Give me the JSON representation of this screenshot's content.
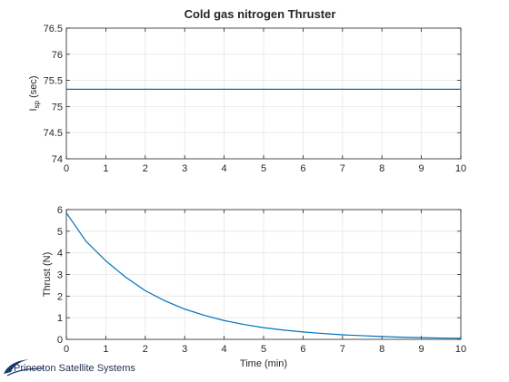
{
  "figure_title": "Cold gas nitrogen Thruster",
  "logo": {
    "text": "Princeton Satellite Systems",
    "color": "#1b3a6b"
  },
  "colors": {
    "line": "#0072bd",
    "grid": "#e6e6e6",
    "axis": "#262626"
  },
  "chart_data": [
    {
      "type": "line",
      "title": "Cold gas nitrogen Thruster",
      "xlabel": "",
      "ylabel_main": "I",
      "ylabel_sub": "sp",
      "ylabel_unit": "(sec)",
      "xlim": [
        0,
        10
      ],
      "ylim": [
        74,
        76.5
      ],
      "xticks": [
        "0",
        "1",
        "2",
        "3",
        "4",
        "5",
        "6",
        "7",
        "8",
        "9",
        "10"
      ],
      "yticks": [
        "74",
        "74.5",
        "75",
        "75.5",
        "76",
        "76.5"
      ],
      "grid": true,
      "series": [
        {
          "x": [
            0,
            10
          ],
          "y": [
            75.33,
            75.33
          ]
        }
      ]
    },
    {
      "type": "line",
      "title": "",
      "xlabel": "Time (min)",
      "ylabel": "Thrust (N)",
      "xlim": [
        0,
        10
      ],
      "ylim": [
        0,
        6
      ],
      "xticks": [
        "0",
        "1",
        "2",
        "3",
        "4",
        "5",
        "6",
        "7",
        "8",
        "9",
        "10"
      ],
      "yticks": [
        "0",
        "1",
        "2",
        "3",
        "4",
        "5",
        "6"
      ],
      "grid": true,
      "series": [
        {
          "x": [
            0,
            0.5,
            1,
            1.5,
            2,
            2.5,
            3,
            3.5,
            4,
            4.5,
            5,
            5.5,
            6,
            6.5,
            7,
            7.5,
            8,
            8.5,
            9,
            9.5,
            10
          ],
          "y": [
            5.85,
            4.53,
            3.63,
            2.88,
            2.25,
            1.78,
            1.4,
            1.11,
            0.87,
            0.69,
            0.54,
            0.43,
            0.34,
            0.27,
            0.21,
            0.17,
            0.13,
            0.1,
            0.08,
            0.06,
            0.05
          ]
        }
      ]
    }
  ]
}
